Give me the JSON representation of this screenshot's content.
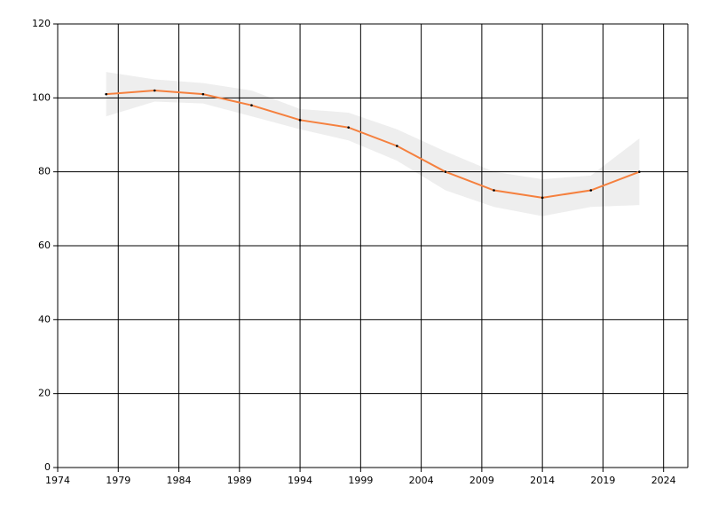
{
  "chart_data": {
    "type": "line",
    "x": [
      1978,
      1982,
      1986,
      1990,
      1994,
      1998,
      2002,
      2006,
      2010,
      2014,
      2018,
      2022
    ],
    "series": [
      {
        "color": "#f5803e",
        "values": [
          101,
          102,
          101,
          98,
          94,
          92,
          87,
          80,
          75,
          73,
          75,
          80
        ]
      }
    ],
    "band": {
      "color": "#eeeeee",
      "upper": [
        107,
        105,
        104,
        102,
        97,
        96,
        91.5,
        85.5,
        80,
        78,
        79,
        89
      ],
      "lower": [
        95,
        99,
        98.5,
        95,
        91.5,
        88.5,
        83,
        75,
        70.5,
        68,
        70.5,
        71
      ]
    },
    "xlim": [
      1974,
      2026
    ],
    "xticks": [
      1974,
      1979,
      1984,
      1989,
      1994,
      1999,
      2004,
      2009,
      2014,
      2019,
      2024
    ],
    "ylim": [
      0,
      120
    ],
    "yticks": [
      0,
      20,
      40,
      60,
      80,
      100,
      120
    ],
    "grid": true
  }
}
